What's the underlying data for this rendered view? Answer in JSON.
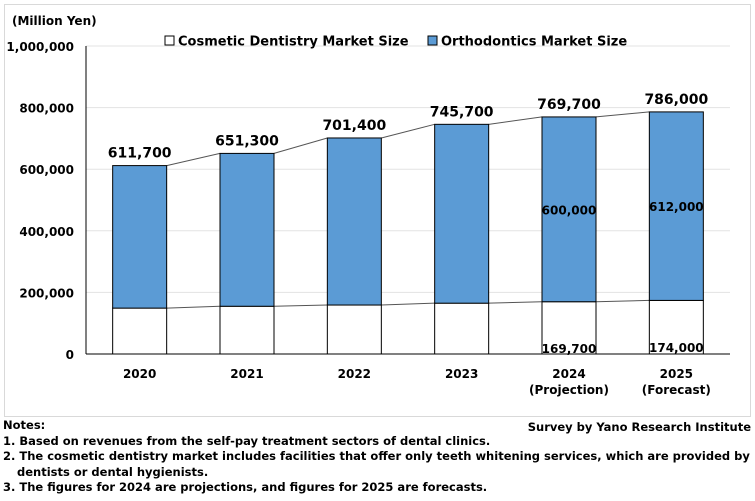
{
  "chart_data": {
    "type": "bar",
    "stacked": true,
    "unit_label": "(Million Yen)",
    "categories": [
      "2020",
      "2021",
      "2022",
      "2023",
      "2024",
      "2025"
    ],
    "category_sublabels": [
      "",
      "",
      "",
      "",
      "(Projection)",
      "(Forecast)"
    ],
    "series": [
      {
        "name": "Cosmetic Dentistry Market Size",
        "color": "#ffffff",
        "values": [
          149000,
          155000,
          159000,
          165000,
          169700,
          174000
        ],
        "value_labels": [
          "",
          "",
          "",
          "",
          "169,700",
          "174,000"
        ]
      },
      {
        "name": "Orthodontics Market Size",
        "color": "#5b9bd5",
        "values": [
          462700,
          496300,
          542400,
          580700,
          600000,
          612000
        ],
        "value_labels": [
          "",
          "",
          "",
          "",
          "600,000",
          "612,000"
        ]
      }
    ],
    "totals": [
      611700,
      651300,
      701400,
      745700,
      769700,
      786000
    ],
    "total_labels": [
      "611,700",
      "651,300",
      "701,400",
      "745,700",
      "769,700",
      "786,000"
    ],
    "yticks": [
      0,
      200000,
      400000,
      600000,
      800000,
      1000000
    ],
    "ytick_labels": [
      "0",
      "200,000",
      "400,000",
      "600,000",
      "800,000",
      "1,000,000"
    ],
    "ylim": [
      0,
      1000000
    ],
    "grid": true,
    "legend_position": "top"
  },
  "source": "Survey by Yano Research Institute",
  "notes": {
    "title": "Notes:",
    "lines": [
      "1. Based on revenues from the self-pay treatment sectors of dental clinics.",
      "2. The cosmetic dentistry market includes facilities that offer only teeth whitening services, which are provided by",
      "dentists or dental hygienists.",
      "3. The figures for 2024 are projections, and figures for 2025 are forecasts."
    ]
  }
}
